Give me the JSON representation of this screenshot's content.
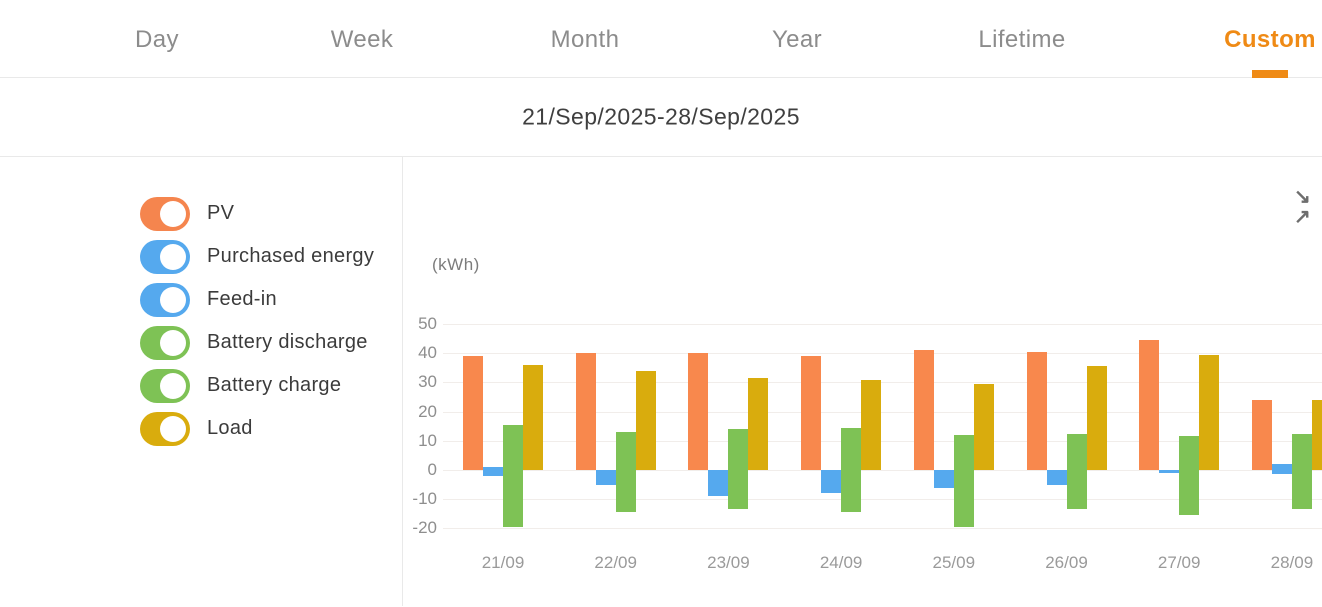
{
  "tabs": {
    "items": [
      {
        "label": "Day",
        "active": false
      },
      {
        "label": "Week",
        "active": false
      },
      {
        "label": "Month",
        "active": false
      },
      {
        "label": "Year",
        "active": false
      },
      {
        "label": "Lifetime",
        "active": false
      },
      {
        "label": "Custom",
        "active": true
      }
    ],
    "active_color": "#ef8a15"
  },
  "header": {
    "date_range": "21/Sep/2025-28/Sep/2025"
  },
  "legend": {
    "items": [
      {
        "label": "PV",
        "color": "#f5854e",
        "on": true
      },
      {
        "label": "Purchased energy",
        "color": "#55a9ee",
        "on": true
      },
      {
        "label": "Feed-in",
        "color": "#55a9ee",
        "on": true
      },
      {
        "label": "Battery discharge",
        "color": "#7ec255",
        "on": true
      },
      {
        "label": "Battery charge",
        "color": "#7ec255",
        "on": true
      },
      {
        "label": "Load",
        "color": "#d9ac0d",
        "on": true
      }
    ]
  },
  "icons": {
    "collapse_top_arrow": "↘",
    "collapse_bottom_arrow": "↗"
  },
  "chart_data": {
    "type": "bar",
    "title": "",
    "unit_label": "(kWh)",
    "xlabel": "",
    "ylabel": "(kWh)",
    "categories": [
      "21/09",
      "22/09",
      "23/09",
      "24/09",
      "25/09",
      "26/09",
      "27/09",
      "28/09"
    ],
    "series": [
      {
        "name": "PV",
        "color": "#f8884d",
        "values": [
          39,
          40,
          40,
          39,
          41,
          40.5,
          44.5,
          24
        ]
      },
      {
        "name": "Purchased energy",
        "color": "#55a9ee",
        "values": [
          1,
          0,
          0,
          0,
          0,
          0,
          0,
          2
        ]
      },
      {
        "name": "Feed-in",
        "color": "#55a9ee",
        "values": [
          -2,
          -5,
          -9,
          -8,
          -6,
          -5,
          -1,
          -1.5
        ]
      },
      {
        "name": "Battery discharge",
        "color": "#7ec255",
        "values": [
          15.5,
          13,
          14,
          14.5,
          12,
          12.5,
          11.5,
          12.5
        ]
      },
      {
        "name": "Battery charge",
        "color": "#7ec255",
        "values": [
          -19.5,
          -14.5,
          -13.5,
          -14.5,
          -19.5,
          -13.5,
          -15.5,
          -13.5
        ]
      },
      {
        "name": "Load",
        "color": "#d9ac0d",
        "values": [
          36,
          34,
          31.5,
          31,
          29.5,
          35.5,
          39.5,
          24
        ]
      }
    ],
    "yticks": [
      50,
      40,
      30,
      20,
      10,
      0,
      -10,
      -20
    ],
    "ylim": [
      -24,
      54
    ],
    "grid": true,
    "legend_position": "left"
  }
}
